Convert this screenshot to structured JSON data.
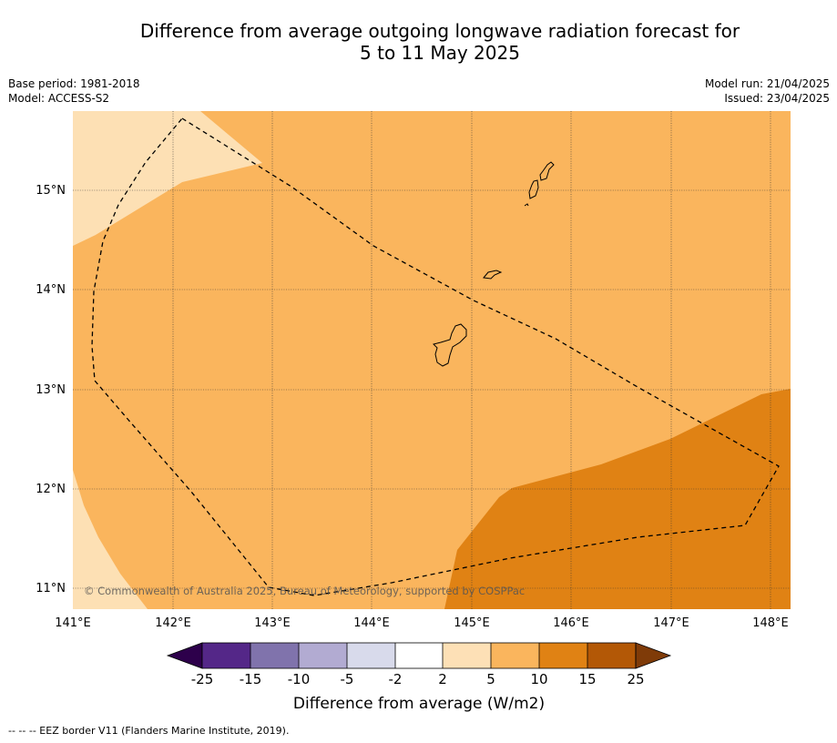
{
  "title": {
    "line1": "Difference from average outgoing longwave radiation forecast for",
    "line2": "5 to 11 May 2025"
  },
  "meta": {
    "base_period": "Base period: 1981-2018",
    "model": "Model: ACCESS-S2",
    "model_run": "Model run: 21/04/2025",
    "issued": "Issued: 23/04/2025"
  },
  "map": {
    "lon_labels": [
      "141°E",
      "142°E",
      "143°E",
      "144°E",
      "145°E",
      "146°E",
      "147°E",
      "148°E"
    ],
    "lat_labels": [
      "15°N",
      "14°N",
      "13°N",
      "12°N",
      "11°N"
    ],
    "copyright": "© Commonwealth of Australia 2025, Bureau of Meteorology, supported by COSPPac",
    "zone_colors": {
      "light": "#fde0b4",
      "mid": "#fab55d",
      "dark": "#e08214"
    }
  },
  "legend": {
    "title": "Difference from average (W/m2)",
    "ticks": [
      "-25",
      "-15",
      "-10",
      "-5",
      "-2",
      "2",
      "5",
      "10",
      "15",
      "25"
    ],
    "colors": [
      "#2d004b",
      "#542788",
      "#8073ac",
      "#b2abd2",
      "#d8daeb",
      "#ffffff",
      "#fde0b6",
      "#fab55d",
      "#e08214",
      "#b35806",
      "#7f3b08"
    ]
  },
  "footer": "--  --  -- EEZ border V11 (Flanders Marine Institute, 2019)."
}
